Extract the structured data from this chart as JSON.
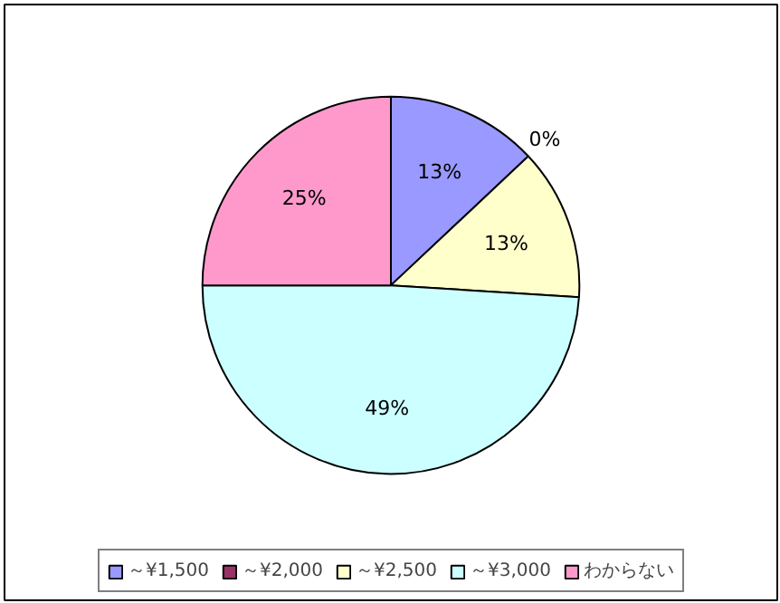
{
  "chart_data": {
    "type": "pie",
    "categories": [
      "～¥1,500",
      "～¥2,000",
      "～¥2,500",
      "～¥3,000",
      "わからない"
    ],
    "values": [
      13,
      0,
      13,
      49,
      25
    ],
    "colors": [
      "#9999ff",
      "#993366",
      "#ffffcc",
      "#ccffff",
      "#ff99cc"
    ],
    "value_labels": [
      "13%",
      "0%",
      "13%",
      "49%",
      "25%"
    ],
    "legend": "bottom"
  }
}
